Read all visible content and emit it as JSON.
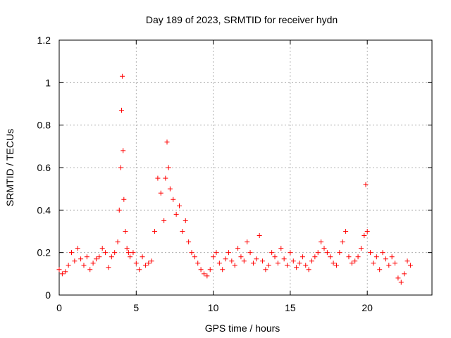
{
  "chart_data": {
    "type": "scatter",
    "title": "Day 189 of 2023, SRMTID for receiver hydn",
    "xlabel": "GPS time / hours",
    "ylabel": "SRMTID / TECUs",
    "xlim": [
      0,
      24.2
    ],
    "ylim": [
      0,
      1.2
    ],
    "xticks": [
      0,
      5,
      10,
      15,
      20
    ],
    "xtick_labels": [
      "0",
      "5",
      "10",
      "15",
      "20"
    ],
    "yticks": [
      0,
      0.2,
      0.4,
      0.6,
      0.8,
      1.0,
      1.2
    ],
    "ytick_labels": [
      "0",
      "0.2",
      "0.4",
      "0.6",
      "0.8",
      "1",
      "1.2"
    ],
    "grid": true,
    "marker": "plus",
    "color": "#ff0000",
    "series": [
      {
        "name": "SRMTID",
        "x": [
          0.0,
          0.2,
          0.4,
          0.6,
          0.8,
          1.0,
          1.2,
          1.4,
          1.6,
          1.8,
          2.0,
          2.2,
          2.4,
          2.6,
          2.8,
          3.0,
          3.2,
          3.4,
          3.6,
          3.8,
          3.9,
          4.0,
          4.05,
          4.1,
          4.15,
          4.2,
          4.3,
          4.4,
          4.5,
          4.6,
          4.8,
          5.0,
          5.2,
          5.4,
          5.6,
          5.8,
          6.0,
          6.2,
          6.4,
          6.6,
          6.8,
          6.9,
          7.0,
          7.1,
          7.2,
          7.4,
          7.6,
          7.8,
          8.0,
          8.2,
          8.4,
          8.6,
          8.8,
          9.0,
          9.2,
          9.4,
          9.6,
          9.8,
          10.0,
          10.2,
          10.4,
          10.6,
          10.8,
          11.0,
          11.2,
          11.4,
          11.6,
          11.8,
          12.0,
          12.2,
          12.4,
          12.6,
          12.8,
          13.0,
          13.2,
          13.4,
          13.6,
          13.8,
          14.0,
          14.2,
          14.4,
          14.6,
          14.8,
          15.0,
          15.2,
          15.4,
          15.6,
          15.8,
          16.0,
          16.2,
          16.4,
          16.6,
          16.8,
          17.0,
          17.2,
          17.4,
          17.6,
          17.8,
          18.0,
          18.2,
          18.4,
          18.6,
          18.8,
          19.0,
          19.2,
          19.4,
          19.6,
          19.8,
          19.9,
          20.0,
          20.2,
          20.4,
          20.6,
          20.8,
          21.0,
          21.2,
          21.4,
          21.6,
          21.8,
          22.0,
          22.2,
          22.4,
          22.6,
          22.8
        ],
        "y": [
          0.12,
          0.1,
          0.11,
          0.14,
          0.2,
          0.16,
          0.22,
          0.17,
          0.14,
          0.18,
          0.12,
          0.15,
          0.17,
          0.18,
          0.22,
          0.2,
          0.13,
          0.18,
          0.2,
          0.25,
          0.4,
          0.6,
          0.87,
          1.03,
          0.68,
          0.45,
          0.3,
          0.22,
          0.2,
          0.18,
          0.2,
          0.15,
          0.12,
          0.18,
          0.14,
          0.15,
          0.16,
          0.3,
          0.55,
          0.48,
          0.35,
          0.55,
          0.72,
          0.6,
          0.5,
          0.45,
          0.38,
          0.42,
          0.3,
          0.35,
          0.25,
          0.2,
          0.18,
          0.15,
          0.12,
          0.1,
          0.09,
          0.12,
          0.18,
          0.2,
          0.15,
          0.12,
          0.17,
          0.2,
          0.16,
          0.14,
          0.22,
          0.18,
          0.16,
          0.25,
          0.2,
          0.15,
          0.17,
          0.28,
          0.16,
          0.12,
          0.14,
          0.2,
          0.18,
          0.15,
          0.22,
          0.17,
          0.14,
          0.2,
          0.16,
          0.13,
          0.15,
          0.18,
          0.14,
          0.12,
          0.16,
          0.18,
          0.2,
          0.25,
          0.22,
          0.2,
          0.18,
          0.15,
          0.14,
          0.2,
          0.25,
          0.3,
          0.18,
          0.15,
          0.16,
          0.18,
          0.22,
          0.28,
          0.52,
          0.3,
          0.2,
          0.15,
          0.18,
          0.12,
          0.2,
          0.17,
          0.14,
          0.18,
          0.15,
          0.08,
          0.06,
          0.1,
          0.16,
          0.14
        ]
      }
    ]
  }
}
